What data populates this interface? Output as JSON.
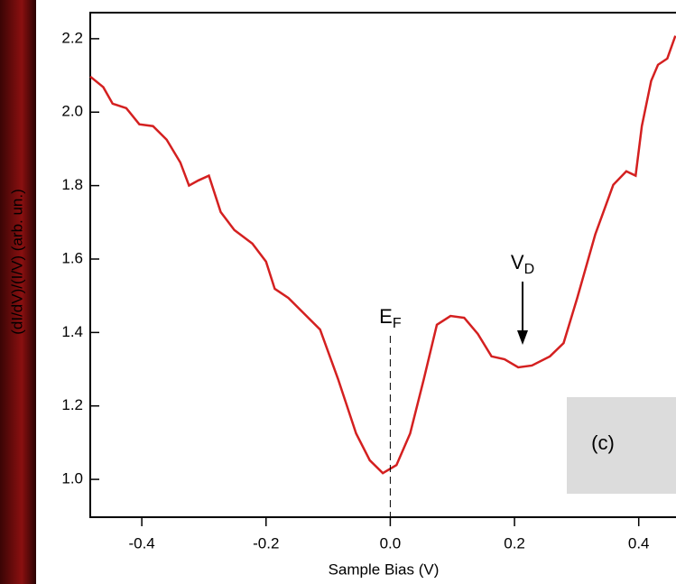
{
  "chart_data": {
    "type": "line",
    "x_label": "Sample Bias (V)",
    "y_label": "(dI/dV)/(I/V) (arb. un.)",
    "panel_label": "(c)",
    "x": [
      -0.483,
      -0.462,
      -0.447,
      -0.425,
      -0.404,
      -0.382,
      -0.36,
      -0.338,
      -0.324,
      -0.309,
      -0.292,
      -0.273,
      -0.251,
      -0.222,
      -0.2,
      -0.186,
      -0.164,
      -0.135,
      -0.113,
      -0.084,
      -0.055,
      -0.033,
      -0.012,
      0.01,
      0.032,
      0.054,
      0.075,
      0.097,
      0.119,
      0.141,
      0.163,
      0.184,
      0.206,
      0.228,
      0.257,
      0.279,
      0.301,
      0.33,
      0.359,
      0.38,
      0.395,
      0.405,
      0.42,
      0.431,
      0.446,
      0.459
    ],
    "series": [
      {
        "color": "#d42020",
        "values": [
          2.097,
          2.068,
          2.023,
          2.011,
          1.967,
          1.962,
          1.925,
          1.863,
          1.8,
          1.814,
          1.827,
          1.728,
          1.679,
          1.642,
          1.593,
          1.519,
          1.494,
          1.445,
          1.408,
          1.273,
          1.125,
          1.052,
          1.017,
          1.039,
          1.125,
          1.273,
          1.421,
          1.445,
          1.44,
          1.396,
          1.335,
          1.327,
          1.305,
          1.31,
          1.335,
          1.371,
          1.494,
          1.667,
          1.802,
          1.839,
          1.827,
          1.962,
          2.085,
          2.129,
          2.146,
          2.208
        ]
      }
    ],
    "xlim": [
      -0.483,
      0.46
    ],
    "ylim": [
      0.897,
      2.271
    ],
    "xticks": [
      -0.4,
      -0.2,
      {
        "value": 0,
        "label": "0.0"
      },
      0.2,
      0.4
    ],
    "yticks": [
      {
        "value": 1,
        "label": "1.0"
      },
      1.2,
      1.4,
      1.6,
      1.8,
      {
        "value": 2,
        "label": "2.0"
      },
      2.2
    ],
    "annotations": [
      {
        "text": "E",
        "subscript": "F",
        "x": 0
      },
      {
        "text": "V",
        "subscript": "D",
        "x": 0.213
      }
    ]
  }
}
